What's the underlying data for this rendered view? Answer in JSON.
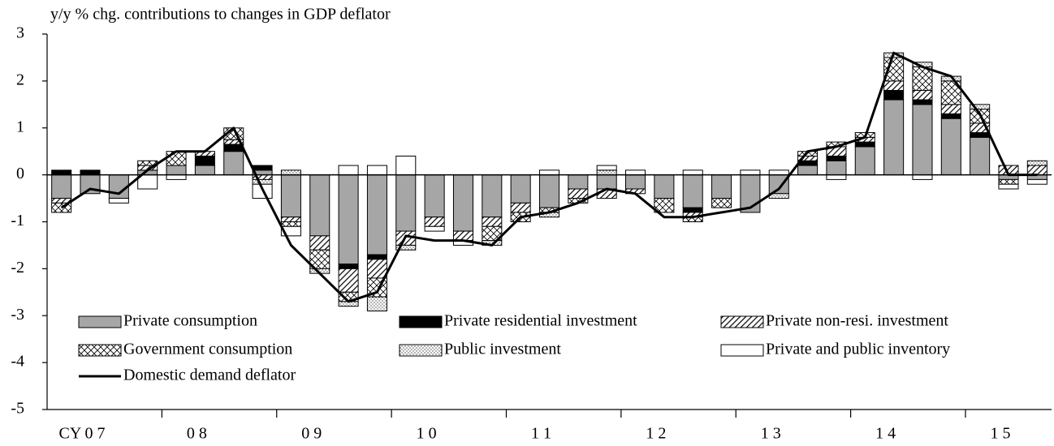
{
  "chart_data": {
    "type": "bar",
    "stacked": true,
    "title": "y/y % chg. contributions to changes in GDP deflator",
    "categories": [
      null,
      "CY 0 7",
      null,
      null,
      null,
      "0 8",
      null,
      null,
      null,
      "0 9",
      null,
      null,
      null,
      "1 0",
      null,
      null,
      null,
      "1 1",
      null,
      null,
      null,
      "1 2",
      null,
      null,
      null,
      "1 3",
      null,
      null,
      null,
      "1 4",
      null,
      null,
      null,
      "1 5",
      null
    ],
    "ylim": [
      -5,
      3
    ],
    "yticks": [
      -5,
      -4,
      -3,
      -2,
      -1,
      0,
      1,
      2,
      3
    ],
    "series": [
      {
        "name": "Private consumption",
        "color": "#a6a6a6",
        "pattern": "solid",
        "values": [
          -0.5,
          -0.4,
          -0.5,
          0.1,
          0.2,
          0.2,
          0.5,
          0.1,
          -0.9,
          -1.3,
          -1.9,
          -1.7,
          -1.2,
          -0.9,
          -1.2,
          -0.9,
          -0.6,
          -0.7,
          -0.3,
          -0.3,
          -0.3,
          -0.5,
          -0.7,
          -0.5,
          -0.8,
          -0.4,
          0.2,
          0.3,
          0.6,
          1.6,
          1.5,
          1.2,
          0.8,
          -0.1,
          -0.1
        ]
      },
      {
        "name": "Private residential investment",
        "color": "#000000",
        "pattern": "solid",
        "values": [
          0.1,
          0.1,
          0,
          0,
          0,
          0.2,
          0.15,
          0.1,
          0,
          0,
          -0.1,
          -0.1,
          0,
          0,
          0,
          0,
          0,
          0,
          0,
          0,
          0,
          0,
          -0.1,
          0,
          0,
          0,
          0.1,
          0.1,
          0.1,
          0.2,
          0.1,
          0.1,
          0.1,
          0,
          0
        ]
      },
      {
        "name": "Private non-resi. investment",
        "color": "#000000",
        "pattern": "hatch",
        "values": [
          -0.1,
          0,
          0,
          0.1,
          0,
          0.1,
          0.1,
          -0.1,
          -0.1,
          -0.3,
          -0.5,
          -0.4,
          -0.3,
          -0.2,
          -0.2,
          -0.2,
          -0.2,
          0,
          -0.2,
          -0.2,
          -0.1,
          0,
          -0.1,
          0,
          0,
          0,
          0.1,
          0.2,
          0.1,
          0.2,
          0.2,
          0.2,
          0.2,
          0.2,
          0.2
        ]
      },
      {
        "name": "Government consumption",
        "color": "#000000",
        "pattern": "cross",
        "values": [
          -0.2,
          0,
          0,
          0.1,
          0.3,
          0,
          0.25,
          0,
          -0.1,
          -0.4,
          -0.2,
          -0.4,
          0,
          0,
          0,
          -0.3,
          -0.2,
          -0.1,
          -0.1,
          0,
          0,
          -0.3,
          -0.1,
          -0.2,
          0,
          0,
          0.1,
          0.1,
          0.1,
          0.5,
          0.5,
          0.5,
          0.3,
          -0.1,
          0
        ]
      },
      {
        "name": "Public investment",
        "color": "#000000",
        "pattern": "dots",
        "values": [
          0,
          0,
          0,
          0,
          0,
          0,
          0,
          -0.1,
          0.1,
          -0.1,
          -0.1,
          -0.3,
          -0.1,
          0,
          0,
          -0.1,
          0,
          -0.1,
          0,
          0.1,
          0,
          0,
          0,
          0,
          0,
          -0.1,
          0,
          0,
          0,
          0.1,
          0.1,
          0.1,
          0.1,
          0,
          0.1
        ]
      },
      {
        "name": "Private and public inventory",
        "color": "#ffffff",
        "pattern": "solid",
        "values": [
          0,
          0,
          -0.1,
          -0.3,
          -0.1,
          0,
          0,
          -0.3,
          -0.2,
          0,
          0.2,
          0.2,
          0.4,
          -0.1,
          -0.1,
          0,
          0,
          0.1,
          0,
          0.1,
          0.1,
          0,
          0.1,
          0,
          0.1,
          0.1,
          0,
          -0.1,
          0,
          0,
          -0.1,
          0,
          0,
          -0.1,
          -0.1
        ]
      },
      {
        "name": "Domestic demand deflator",
        "color": "#000000",
        "type": "line",
        "values": [
          -0.7,
          -0.3,
          -0.4,
          0.1,
          0.5,
          0.5,
          1.0,
          -0.3,
          -1.5,
          -2.1,
          -2.7,
          -2.5,
          -1.3,
          -1.4,
          -1.4,
          -1.5,
          -0.9,
          -0.8,
          -0.6,
          -0.3,
          -0.4,
          -0.9,
          -0.9,
          -0.8,
          -0.7,
          -0.3,
          0.5,
          0.6,
          0.8,
          2.6,
          2.3,
          2.1,
          1.3,
          0.0,
          0.0
        ]
      }
    ]
  }
}
